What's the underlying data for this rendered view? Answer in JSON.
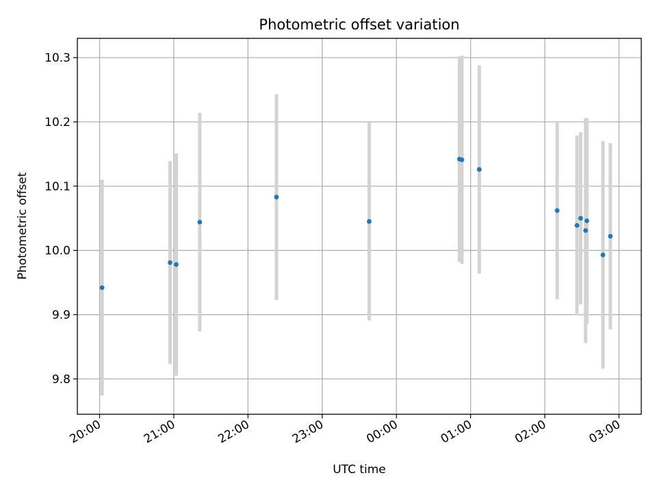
{
  "chart_data": {
    "type": "scatter",
    "title": "Photometric offset variation",
    "xlabel": "UTC time",
    "ylabel": "Photometric offset",
    "x_axis": "time",
    "x_ticks": [
      "20:00",
      "21:00",
      "22:00",
      "23:00",
      "00:00",
      "01:00",
      "02:00",
      "03:00"
    ],
    "y_ticks": [
      "9.8",
      "9.9",
      "10.0",
      "10.1",
      "10.2",
      "10.3"
    ],
    "xlim": [
      "19:42",
      "03:18"
    ],
    "ylim": [
      9.745,
      10.33
    ],
    "grid": true,
    "point_color": "#1f77b4",
    "errorbar_color": "#d3d3d3",
    "points": [
      {
        "time": "20:02",
        "y": 9.942,
        "err": 0.168
      },
      {
        "time": "20:57",
        "y": 9.981,
        "err": 0.158
      },
      {
        "time": "21:02",
        "y": 9.978,
        "err": 0.173
      },
      {
        "time": "21:21",
        "y": 10.044,
        "err": 0.17
      },
      {
        "time": "22:23",
        "y": 10.083,
        "err": 0.16
      },
      {
        "time": "23:38",
        "y": 10.045,
        "err": 0.154
      },
      {
        "time": "00:51",
        "y": 10.142,
        "err": 0.16
      },
      {
        "time": "00:53",
        "y": 10.141,
        "err": 0.162
      },
      {
        "time": "01:07",
        "y": 10.126,
        "err": 0.162
      },
      {
        "time": "02:10",
        "y": 10.062,
        "err": 0.138
      },
      {
        "time": "02:26",
        "y": 10.039,
        "err": 0.14
      },
      {
        "time": "02:29",
        "y": 10.05,
        "err": 0.134
      },
      {
        "time": "02:33",
        "y": 10.031,
        "err": 0.175
      },
      {
        "time": "02:34",
        "y": 10.046,
        "err": 0.16
      },
      {
        "time": "02:47",
        "y": 9.993,
        "err": 0.177
      },
      {
        "time": "02:53",
        "y": 10.022,
        "err": 0.145
      }
    ]
  }
}
